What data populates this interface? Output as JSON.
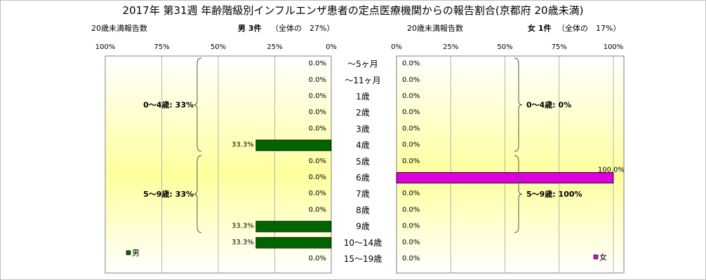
{
  "chart_data": {
    "type": "bar",
    "title": "2017年 第31週 年齢階級別インフルエンザ患者の定点医療機関からの報告割合(京都府 20歳未満)",
    "categories": [
      "～5ヶ月",
      "～11ヶ月",
      "1歳",
      "2歳",
      "3歳",
      "4歳",
      "5歳",
      "6歳",
      "7歳",
      "8歳",
      "9歳",
      "10～14歳",
      "15～19歳"
    ],
    "x_ticks": [
      "100%",
      "75%",
      "50%",
      "25%",
      "0%"
    ],
    "x_ticks_right": [
      "0%",
      "25%",
      "50%",
      "75%",
      "100%"
    ],
    "xlim": [
      0,
      100
    ],
    "grid": true,
    "legend_position": "bottom-left / bottom-right",
    "series": [
      {
        "name": "男",
        "side": "left",
        "color": "#006400",
        "header_left": "20歳未満報告数",
        "header": "男 3件",
        "header_note": "（全体の　27%）",
        "values": [
          0.0,
          0.0,
          0.0,
          0.0,
          0.0,
          33.3,
          0.0,
          0.0,
          0.0,
          0.0,
          33.3,
          33.3,
          0.0
        ],
        "value_labels": [
          "0.0%",
          "0.0%",
          "0.0%",
          "0.0%",
          "0.0%",
          "33.3%",
          "0.0%",
          "0.0%",
          "0.0%",
          "0.0%",
          "33.3%",
          "33.3%",
          "0.0%"
        ],
        "groups": [
          {
            "label": "0～4歳: 33%",
            "from": 0,
            "to": 5
          },
          {
            "label": "5～9歳: 33%",
            "from": 6,
            "to": 10
          }
        ]
      },
      {
        "name": "女",
        "side": "right",
        "color": "#dd00dd",
        "header_left": "20歳未満報告数",
        "header": "女 1件",
        "header_note": "（全体の　17%）",
        "values": [
          0.0,
          0.0,
          0.0,
          0.0,
          0.0,
          0.0,
          0.0,
          100.0,
          0.0,
          0.0,
          0.0,
          0.0,
          0.0
        ],
        "value_labels": [
          "0.0%",
          "0.0%",
          "0.0%",
          "0.0%",
          "0.0%",
          "0.0%",
          "0.0%",
          "100.0%",
          "0.0%",
          "0.0%",
          "0.0%",
          "0.0%",
          "0.0%"
        ],
        "groups": [
          {
            "label": "0～4歳: 0%",
            "from": 0,
            "to": 5
          },
          {
            "label": "5～9歳: 100%",
            "from": 6,
            "to": 10
          }
        ]
      }
    ]
  }
}
